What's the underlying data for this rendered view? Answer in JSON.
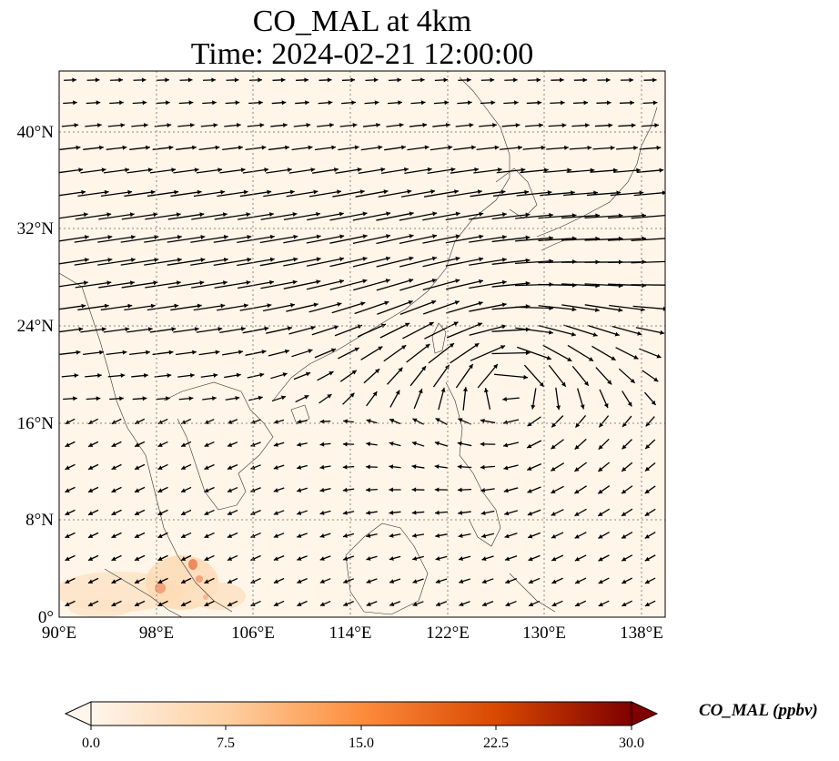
{
  "title": {
    "line1": "CO_MAL at 4km",
    "line2": "Time: 2024-02-21 12:00:00"
  },
  "map": {
    "lon_range": [
      90,
      140
    ],
    "lat_range": [
      0,
      45
    ],
    "x_ticks": [
      "90°E",
      "98°E",
      "106°E",
      "114°E",
      "122°E",
      "130°E",
      "138°E"
    ],
    "y_ticks": [
      "0°",
      "8°N",
      "16°N",
      "24°N",
      "32°N",
      "40°N"
    ],
    "background_color": "#fff5e8",
    "gridlines": "dotted",
    "vectors": "black wind arrows"
  },
  "colorbar": {
    "label": "CO_MAL (ppbv)",
    "ticks": [
      "0.0",
      "7.5",
      "15.0",
      "22.5",
      "30.0"
    ],
    "range": [
      0,
      30
    ],
    "extend": "both",
    "colors": [
      "#fff5eb",
      "#fdd0a2",
      "#fd8d3c",
      "#d94801",
      "#8c2d04",
      "#7f0000"
    ]
  }
}
